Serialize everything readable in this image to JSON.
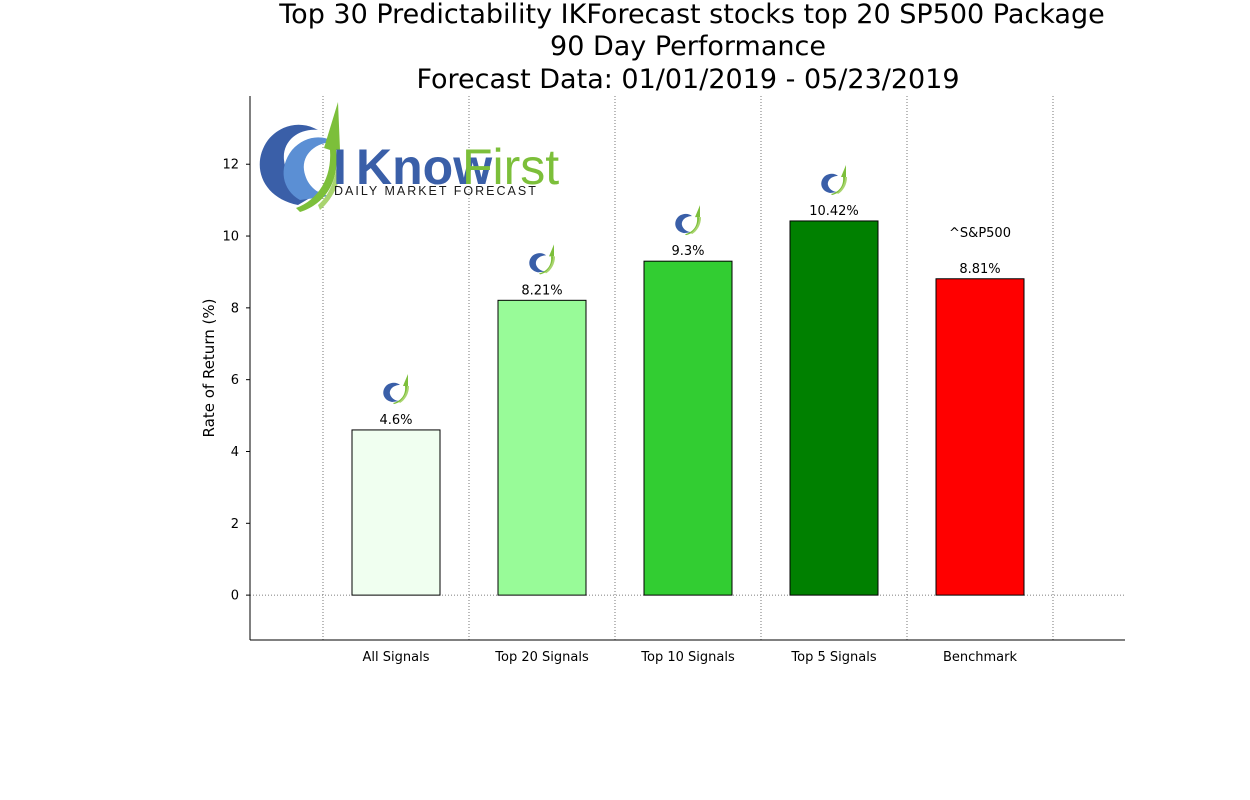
{
  "chart_data": {
    "type": "bar",
    "title_lines": [
      "Top 30 Predictability IKForecast stocks top 20 SP500 Package",
      "90 Day Performance",
      "Forecast Data: 01/01/2019 - 05/23/2019"
    ],
    "ylabel": "Rate of Return (%)",
    "xlabel": "",
    "ylim": [
      -1.25,
      13.9
    ],
    "yticks": [
      0,
      2,
      4,
      6,
      8,
      10,
      12
    ],
    "grid": "vertical dotted lines between categories, dotted zero line",
    "categories": [
      "All Signals",
      "Top 20 Signals",
      "Top 10 Signals",
      "Top 5 Signals",
      "Benchmark"
    ],
    "values": [
      4.6,
      8.21,
      9.3,
      10.42,
      8.81
    ],
    "value_labels": [
      "4.6%",
      "8.21%",
      "9.3%",
      "10.42%",
      "8.81%"
    ],
    "bar_colors": [
      "#f0fff0",
      "#98fb98",
      "#32cd32",
      "#008000",
      "#ff0000"
    ],
    "benchmark_annotation": "^S&P500"
  },
  "logo": {
    "word_i": "I",
    "word_know": "Know",
    "word_first": "First",
    "tagline": "DAILY MARKET FORECAST",
    "colors": {
      "blue": "#3a5fa8",
      "green": "#7cbf3a",
      "light_green": "#a9d46f"
    }
  }
}
